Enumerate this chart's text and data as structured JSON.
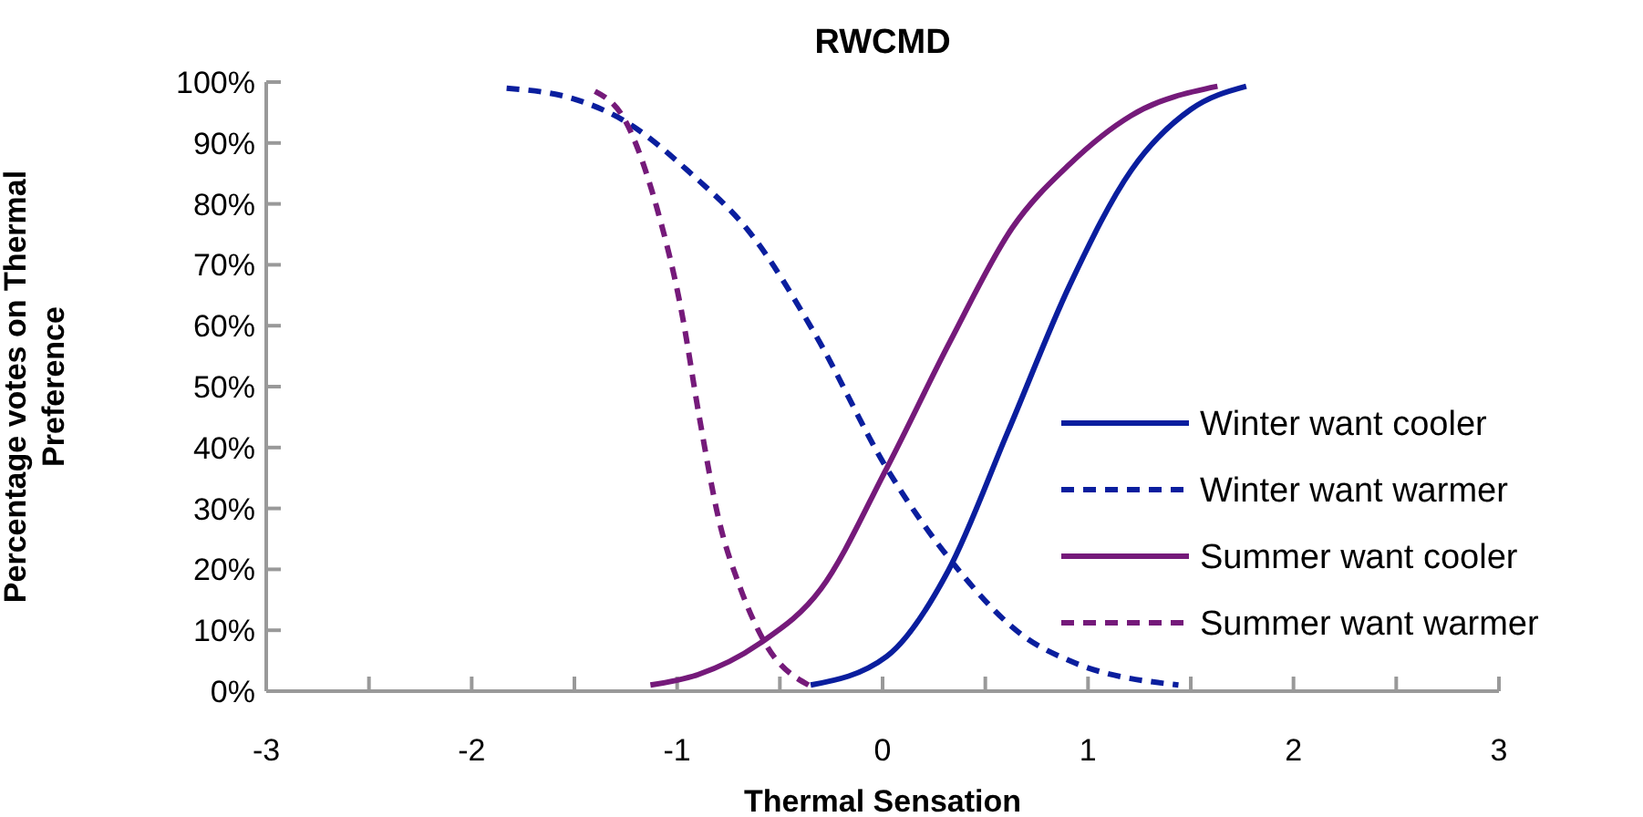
{
  "chart_data": {
    "type": "line",
    "title": "RWCMD",
    "xlabel": "Thermal Sensation",
    "ylabel": "Percentage votes on Thermal Preference",
    "xlim": [
      -3,
      3
    ],
    "xticks": [
      -3,
      {
        "value": -2.5,
        "label": null
      },
      -2,
      {
        "value": -1.5,
        "label": null
      },
      -1,
      {
        "value": -0.5,
        "label": null
      },
      0,
      {
        "value": 0.5,
        "label": null
      },
      1,
      {
        "value": 1.5,
        "label": null
      },
      2,
      {
        "value": 2.5,
        "label": null
      },
      3
    ],
    "ylim": [
      0,
      100
    ],
    "yticks": [
      {
        "value": 0,
        "label": "0%"
      },
      {
        "value": 10,
        "label": "10%"
      },
      {
        "value": 20,
        "label": "20%"
      },
      {
        "value": 30,
        "label": "30%"
      },
      {
        "value": 40,
        "label": "40%"
      },
      {
        "value": 50,
        "label": "50%"
      },
      {
        "value": 60,
        "label": "60%"
      },
      {
        "value": 70,
        "label": "70%"
      },
      {
        "value": 80,
        "label": "80%"
      },
      {
        "value": 90,
        "label": "90%"
      },
      {
        "value": 100,
        "label": "100%"
      }
    ],
    "grid": false,
    "legend": "right",
    "marker": "none",
    "series": [
      {
        "name": "Winter want cooler",
        "color": "#0a1e9e",
        "line_style": "solid",
        "x": [
          -0.35,
          0.02,
          0.32,
          0.61,
          0.91,
          1.21,
          1.5,
          1.77
        ],
        "values": [
          1,
          5.7,
          19.8,
          42.6,
          66.6,
          85.5,
          95.5,
          99.3
        ]
      },
      {
        "name": "Winter want warmer",
        "color": "#0a1e9e",
        "line_style": "dashed",
        "x": [
          -1.83,
          -1.48,
          -1.25,
          -0.95,
          -0.63,
          -0.33,
          0.02,
          0.35,
          0.7,
          0.91,
          1.44
        ],
        "values": [
          99,
          97,
          93.5,
          85.5,
          74.6,
          58.7,
          36.6,
          20.7,
          8.7,
          5,
          1
        ]
      },
      {
        "name": "Summer want cooler",
        "color": "#751a7a",
        "line_style": "solid",
        "x": [
          -1.13,
          -0.9,
          -0.6,
          -0.3,
          0.02,
          0.33,
          0.63,
          0.91,
          1.21,
          1.63
        ],
        "values": [
          1,
          2.7,
          7.8,
          16.8,
          36.6,
          57.5,
          76,
          86.5,
          94.5,
          99.3
        ]
      },
      {
        "name": "Summer want warmer",
        "color": "#751a7a",
        "line_style": "dashed",
        "x": [
          -1.4,
          -1.25,
          -1.1,
          -0.98,
          -0.89,
          -0.8,
          -0.69,
          -0.57,
          -0.36
        ],
        "values": [
          98.5,
          93.5,
          79.5,
          62.6,
          44.6,
          28.6,
          16.7,
          7.8,
          1
        ]
      }
    ]
  }
}
